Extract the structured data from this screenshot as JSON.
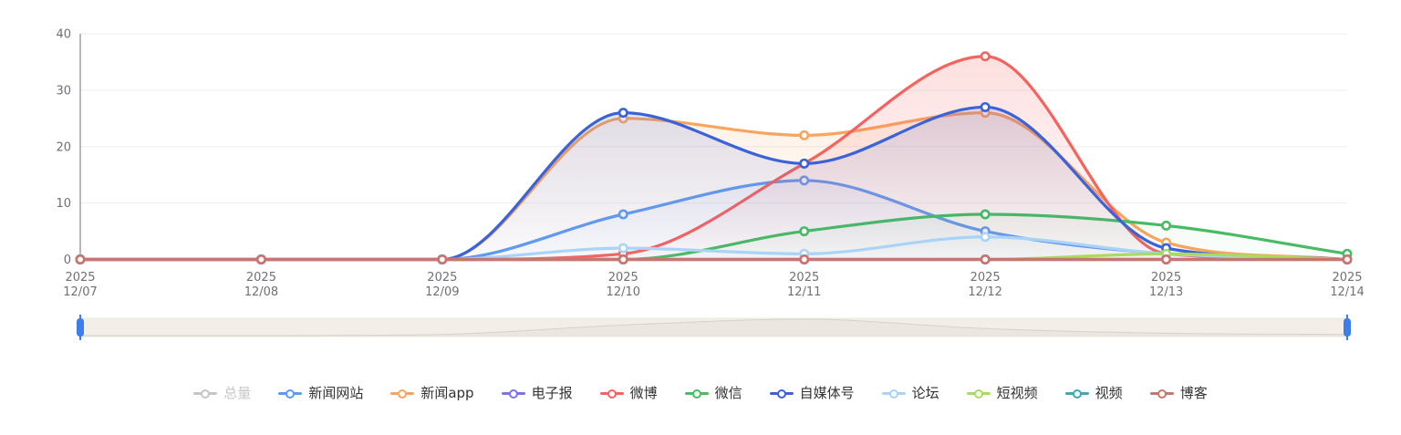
{
  "chart_data": {
    "type": "line",
    "title": "",
    "smooth": true,
    "grid": true,
    "legend_position": "bottom",
    "categories": [
      {
        "year": "2025",
        "date": "12/07"
      },
      {
        "year": "2025",
        "date": "12/08"
      },
      {
        "year": "2025",
        "date": "12/09"
      },
      {
        "year": "2025",
        "date": "12/10"
      },
      {
        "year": "2025",
        "date": "12/11"
      },
      {
        "year": "2025",
        "date": "12/12"
      },
      {
        "year": "2025",
        "date": "12/13"
      },
      {
        "year": "2025",
        "date": "12/14"
      }
    ],
    "y_axis": {
      "min": 0,
      "max": 40,
      "ticks": [
        0,
        10,
        20,
        30,
        40
      ]
    },
    "series": [
      {
        "id": "zongliang",
        "name": "总量",
        "color": "#c8c8c8",
        "selected": false,
        "values": []
      },
      {
        "id": "xinwen-wangzhan",
        "name": "新闻网站",
        "color": "#5B9BF8",
        "selected": true,
        "values": [
          0,
          0,
          0,
          8,
          14,
          5,
          1,
          0
        ]
      },
      {
        "id": "xinwen-app",
        "name": "新闻app",
        "color": "#FBA45E",
        "selected": true,
        "values": [
          0,
          0,
          0,
          25,
          22,
          26,
          3,
          0
        ]
      },
      {
        "id": "dianzibao",
        "name": "电子报",
        "color": "#7B72EE",
        "selected": true,
        "values": [
          0,
          0,
          0,
          0,
          0,
          0,
          0,
          0
        ]
      },
      {
        "id": "weibo",
        "name": "微博",
        "color": "#F5635F",
        "selected": true,
        "values": [
          0,
          0,
          0,
          1,
          17,
          36,
          1,
          0
        ]
      },
      {
        "id": "weixin",
        "name": "微信",
        "color": "#49BB62",
        "selected": true,
        "values": [
          0,
          0,
          0,
          0,
          5,
          8,
          6,
          1
        ]
      },
      {
        "id": "zimeitihao",
        "name": "自媒体号",
        "color": "#3A63D9",
        "selected": true,
        "values": [
          0,
          0,
          0,
          26,
          17,
          27,
          2,
          0
        ]
      },
      {
        "id": "luntan",
        "name": "论坛",
        "color": "#A9D4F7",
        "selected": true,
        "values": [
          0,
          0,
          0,
          2,
          1,
          4,
          1,
          0
        ]
      },
      {
        "id": "duanshipin",
        "name": "短视频",
        "color": "#A9DB62",
        "selected": true,
        "values": [
          0,
          0,
          0,
          0,
          0,
          0,
          1,
          0
        ]
      },
      {
        "id": "shipin",
        "name": "视频",
        "color": "#3FA8B0",
        "selected": true,
        "values": [
          0,
          0,
          0,
          0,
          0,
          0,
          0,
          0
        ]
      },
      {
        "id": "boke",
        "name": "博客",
        "color": "#C9756F",
        "selected": true,
        "values": [
          0,
          0,
          0,
          0,
          0,
          0,
          0,
          0
        ]
      }
    ],
    "data_zoom": {
      "range_percent": [
        0,
        100
      ],
      "bar_color": "#F3EFE8",
      "border_color": "#ECE7E0",
      "shadow_line_color": "#D6D2CB",
      "handle_color": "#3D7EEB",
      "shadow_profile": [
        0,
        0,
        1,
        9,
        14,
        6,
        2,
        1
      ]
    },
    "colors": {
      "grid_line": "#EBEDF3",
      "axis_line": "#6E7079",
      "axis_label": "#6E7079",
      "legend_text": "#333333",
      "legend_disabled": "#c6c6c6",
      "marker_fill": "#ffffff",
      "background": "#ffffff"
    }
  }
}
